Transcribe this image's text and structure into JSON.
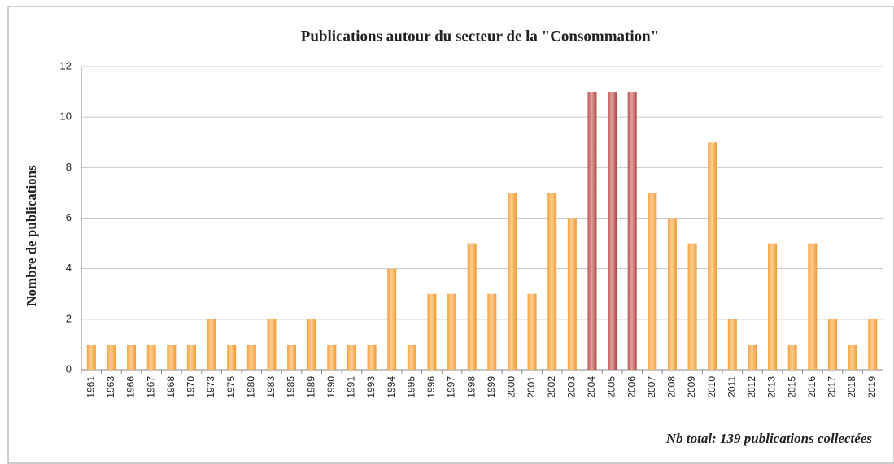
{
  "chart_data": {
    "type": "bar",
    "title": "Publications autour du secteur de la \"Consommation\"",
    "y_label": "Nombre de publications",
    "annotation": "Nb total: 139 publications collectées",
    "categories": [
      "1961",
      "1963",
      "1966",
      "1967",
      "1968",
      "1970",
      "1973",
      "1975",
      "1980",
      "1983",
      "1985",
      "1989",
      "1990",
      "1991",
      "1993",
      "1994",
      "1995",
      "1996",
      "1997",
      "1998",
      "1999",
      "2000",
      "2001",
      "2002",
      "2003",
      "2004",
      "2005",
      "2006",
      "2007",
      "2008",
      "2009",
      "2010",
      "2011",
      "2012",
      "2013",
      "2015",
      "2016",
      "2017",
      "2018",
      "2019"
    ],
    "values": [
      1,
      1,
      1,
      1,
      1,
      1,
      2,
      1,
      1,
      2,
      1,
      2,
      1,
      1,
      1,
      4,
      1,
      3,
      3,
      5,
      3,
      7,
      3,
      7,
      6,
      11,
      11,
      11,
      7,
      6,
      5,
      9,
      2,
      1,
      5,
      1,
      5,
      2,
      1,
      2
    ],
    "colors": [
      "#f59a2a",
      "#f59a2a",
      "#f59a2a",
      "#f59a2a",
      "#f59a2a",
      "#f59a2a",
      "#f59a2a",
      "#f59a2a",
      "#f59a2a",
      "#f59a2a",
      "#f59a2a",
      "#f59a2a",
      "#f59a2a",
      "#f59a2a",
      "#f59a2a",
      "#f59a2a",
      "#f59a2a",
      "#f59a2a",
      "#f59a2a",
      "#f59a2a",
      "#f59a2a",
      "#f59a2a",
      "#f59a2a",
      "#f59a2a",
      "#f59a2a",
      "#b8433e",
      "#b8433e",
      "#b8433e",
      "#f59a2a",
      "#f59a2a",
      "#f59a2a",
      "#f59a2a",
      "#f59a2a",
      "#f59a2a",
      "#f59a2a",
      "#f59a2a",
      "#f59a2a",
      "#f59a2a",
      "#f59a2a",
      "#f59a2a"
    ],
    "ylim": [
      0,
      12
    ],
    "yticks": [
      0,
      2,
      4,
      6,
      8,
      10,
      12
    ],
    "grid": true
  }
}
